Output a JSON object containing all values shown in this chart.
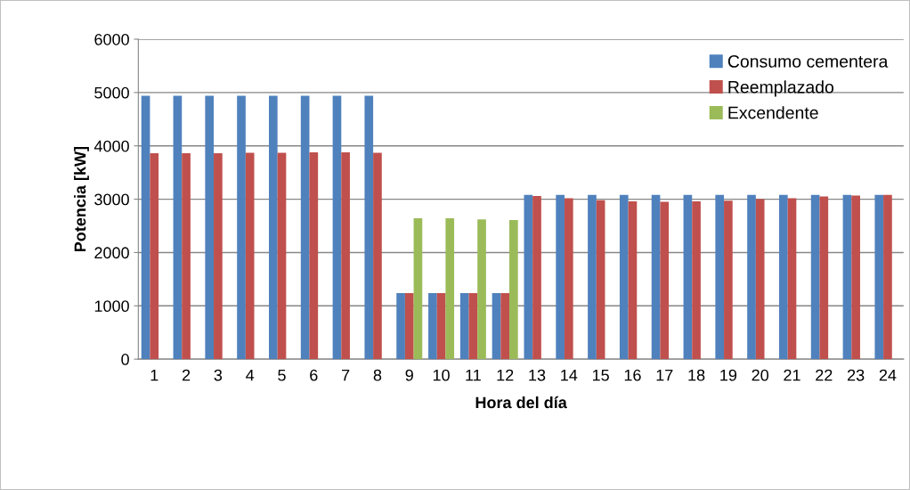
{
  "chart_data": {
    "type": "bar",
    "xlabel": "Hora del día",
    "ylabel": "Potencia [kW]",
    "categories": [
      "1",
      "2",
      "3",
      "4",
      "5",
      "6",
      "7",
      "8",
      "9",
      "10",
      "11",
      "12",
      "13",
      "14",
      "15",
      "16",
      "17",
      "18",
      "19",
      "20",
      "21",
      "22",
      "23",
      "24"
    ],
    "series": [
      {
        "name": "Consumo cementera",
        "color": "#4f81bd",
        "values": [
          4940,
          4940,
          4940,
          4940,
          4940,
          4940,
          4940,
          4940,
          1240,
          1240,
          1240,
          1240,
          3080,
          3080,
          3080,
          3080,
          3080,
          3080,
          3080,
          3080,
          3080,
          3080,
          3080,
          3080
        ]
      },
      {
        "name": "Reemplazado",
        "color": "#c0504d",
        "values": [
          3860,
          3860,
          3860,
          3870,
          3870,
          3880,
          3880,
          3870,
          1240,
          1240,
          1240,
          1240,
          3060,
          3020,
          2980,
          2960,
          2950,
          2960,
          2970,
          3000,
          3020,
          3050,
          3070,
          3080
        ]
      },
      {
        "name": "Excendente",
        "color": "#9bbb59",
        "values": [
          null,
          null,
          null,
          null,
          null,
          null,
          null,
          null,
          2640,
          2640,
          2620,
          2610,
          null,
          null,
          null,
          null,
          null,
          null,
          null,
          null,
          null,
          null,
          null,
          null
        ]
      }
    ],
    "ylim": [
      0,
      6000
    ],
    "yticks": [
      0,
      1000,
      2000,
      3000,
      4000,
      5000,
      6000
    ],
    "grid": "y",
    "legend": "top right"
  }
}
